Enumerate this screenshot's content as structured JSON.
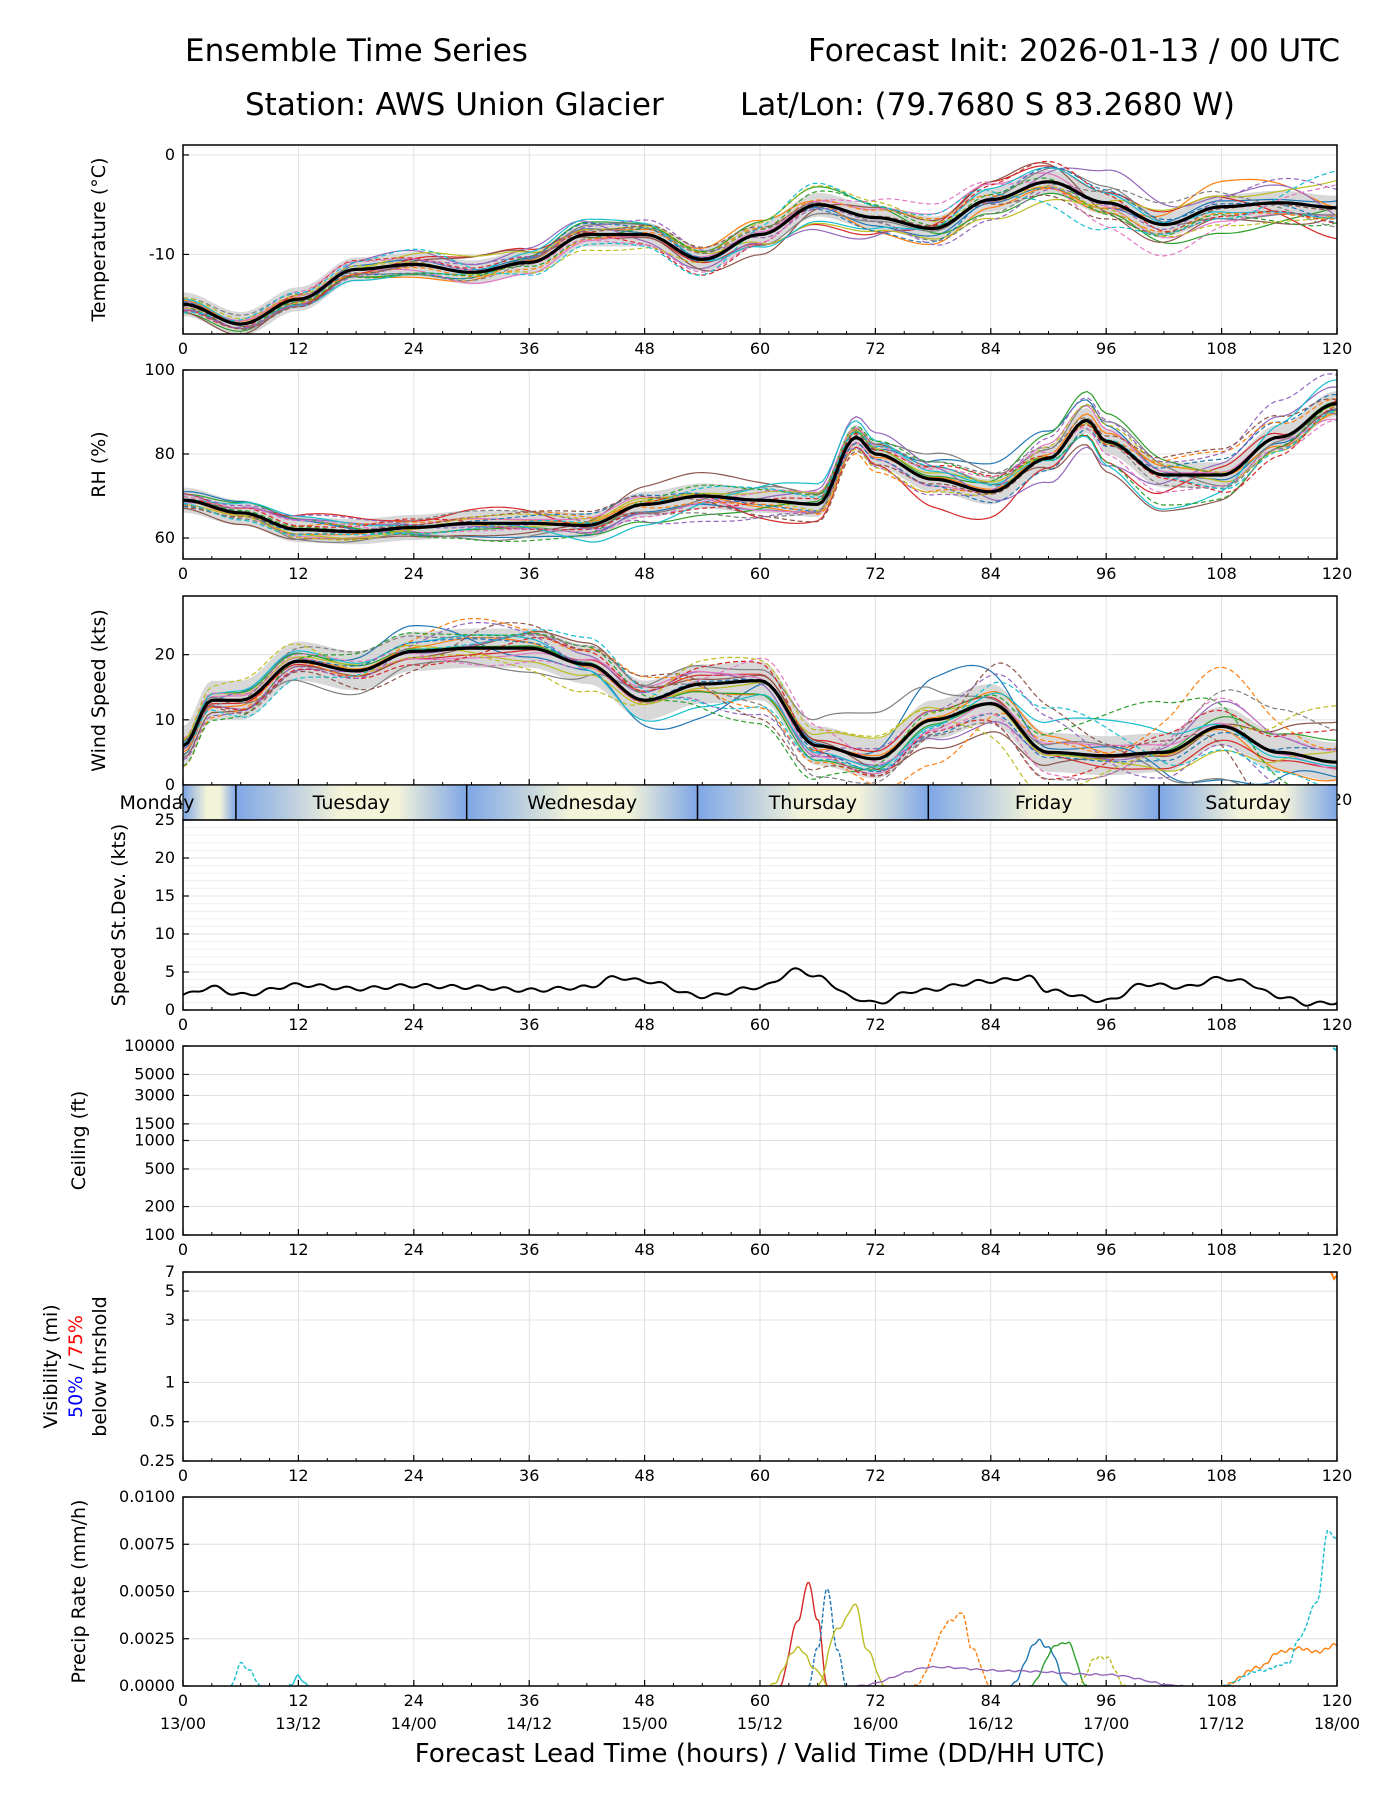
{
  "header": {
    "title_left": "Ensemble Time Series",
    "title_right": "Forecast Init: 2026-01-13 / 00 UTC",
    "station": "Station: AWS Union Glacier",
    "latlon": "Lat/Lon: (79.7680 S 83.2680 W)"
  },
  "colors": {
    "mean": "#000000",
    "spread": "#c8c8c8",
    "grid": "#e0e0e0",
    "members": [
      "#1f77b4",
      "#ff7f0e",
      "#2ca02c",
      "#d62728",
      "#9467bd",
      "#8c564b",
      "#e377c2",
      "#7f7f7f",
      "#bcbd22",
      "#17becf"
    ],
    "vis_50": "#0000ff",
    "vis_75": "#ff0000",
    "day_band_light": "#f3f3d9",
    "day_band_dark": "#7ea6e6"
  },
  "xaxis": {
    "lead_ticks": [
      0,
      12,
      24,
      36,
      48,
      60,
      72,
      84,
      96,
      108,
      120
    ],
    "valid_labels": [
      "13/00",
      "13/12",
      "14/00",
      "14/12",
      "15/00",
      "15/12",
      "16/00",
      "16/12",
      "17/00",
      "17/12",
      "18/00"
    ],
    "xlabel": "Forecast Lead Time (hours) / Valid Time (DD/HH UTC)"
  },
  "day_bands": [
    {
      "label": "Monday"
    },
    {
      "label": "Tuesday"
    },
    {
      "label": "Wednesday"
    },
    {
      "label": "Thursday"
    },
    {
      "label": "Friday"
    },
    {
      "label": "Saturday"
    }
  ],
  "chart_data": [
    {
      "id": "temperature",
      "type": "line",
      "ylabel": "Temperature (°C)",
      "ylim": [
        -18,
        1
      ],
      "yticks": [
        0,
        -10
      ],
      "x": [
        0,
        6,
        12,
        18,
        24,
        30,
        36,
        42,
        48,
        54,
        60,
        66,
        72,
        78,
        84,
        90,
        96,
        102,
        108,
        114,
        120
      ],
      "mean": [
        -15,
        -17,
        -14.5,
        -11.5,
        -11,
        -11.8,
        -10.8,
        -8,
        -8,
        -10.5,
        -8,
        -5,
        -6.3,
        -7.4,
        -4.5,
        -2.7,
        -4.8,
        -7,
        -5.2,
        -4.8,
        -5.3
      ],
      "spread": 1.2,
      "members": 20
    },
    {
      "id": "rh",
      "type": "line",
      "ylabel": "RH (%)",
      "ylim": [
        55,
        100
      ],
      "yticks": [
        60,
        80,
        100
      ],
      "x": [
        0,
        6,
        12,
        18,
        24,
        30,
        36,
        42,
        48,
        54,
        60,
        66,
        70,
        72,
        78,
        84,
        90,
        94,
        96,
        102,
        108,
        114,
        120
      ],
      "mean": [
        69,
        66,
        62,
        61.5,
        62.5,
        63.5,
        63.5,
        63,
        68,
        70,
        69,
        68,
        84,
        80,
        74,
        71,
        79,
        88,
        83,
        75,
        75,
        84,
        92
      ],
      "spread": 3,
      "members": 20
    },
    {
      "id": "wind",
      "type": "line",
      "ylabel": "Wind Speed (kts)",
      "ylim": [
        0,
        29
      ],
      "yticks": [
        0,
        10,
        20
      ],
      "x": [
        0,
        3,
        6,
        12,
        18,
        24,
        30,
        36,
        42,
        48,
        54,
        60,
        66,
        72,
        78,
        84,
        90,
        96,
        102,
        108,
        114,
        120
      ],
      "mean": [
        6,
        13,
        13,
        19,
        17.5,
        20.5,
        21,
        21,
        18.5,
        13,
        15.5,
        16,
        6,
        4,
        10,
        12.5,
        5,
        4.5,
        5,
        9,
        5,
        3.5
      ],
      "spread": 3,
      "members": 20
    },
    {
      "id": "stdev",
      "type": "line",
      "ylabel": "Speed St.Dev. (kts)",
      "ylim": [
        0,
        25
      ],
      "yticks": [
        0,
        5,
        10,
        15,
        20,
        25
      ],
      "x": [
        0,
        3,
        6,
        12,
        18,
        24,
        30,
        36,
        42,
        45,
        48,
        54,
        60,
        64,
        66,
        70,
        72,
        76,
        84,
        88,
        90,
        96,
        100,
        104,
        108,
        110,
        114,
        117,
        120
      ],
      "values": [
        2,
        3,
        2,
        3.3,
        2.8,
        3.2,
        3,
        2.6,
        3,
        4.3,
        3.8,
        1.8,
        3,
        5.3,
        4.3,
        1.5,
        0.9,
        2.5,
        3.8,
        4.3,
        2.5,
        1.2,
        3.4,
        3,
        4.2,
        3.8,
        1.8,
        0.8,
        1
      ]
    },
    {
      "id": "ceiling",
      "type": "line",
      "ylabel": "Ceiling (ft)",
      "yscale": "log",
      "ylim": [
        100,
        10000
      ],
      "yticks": [
        100,
        200,
        500,
        1000,
        1500,
        3000,
        5000,
        10000
      ],
      "series": []
    },
    {
      "id": "visibility",
      "type": "line",
      "ylabel_lines": [
        "Visibility (mi)",
        "below thrshold"
      ],
      "ylabel_50": "50%",
      "ylabel_sep": " / ",
      "ylabel_75": "75%",
      "yscale": "log",
      "ylim": [
        0.25,
        7
      ],
      "yticks": [
        0.25,
        0.5,
        1,
        3,
        5,
        7
      ],
      "series": []
    },
    {
      "id": "precip",
      "type": "line",
      "ylabel": "Precip Rate (mm/h)",
      "ylim": [
        0,
        0.01
      ],
      "yticks": [
        0.0,
        0.0025,
        0.005,
        0.0075,
        0.01
      ],
      "ytick_labels": [
        "0.0000",
        "0.0025",
        "0.0050",
        "0.0075",
        "0.0100"
      ],
      "series": [
        {
          "color_index": 9,
          "x": [
            5,
            6,
            7,
            8
          ],
          "y": [
            0,
            0.0012,
            0.0008,
            0
          ]
        },
        {
          "color_index": 9,
          "x": [
            11,
            12,
            13
          ],
          "y": [
            0,
            0.0005,
            0
          ]
        },
        {
          "color_index": 3,
          "x": [
            62,
            64,
            65,
            66,
            67
          ],
          "y": [
            0,
            0.0035,
            0.0055,
            0.0035,
            0
          ]
        },
        {
          "color_index": 0,
          "x": [
            65,
            66,
            67,
            68,
            69
          ],
          "y": [
            0,
            0.002,
            0.0052,
            0.002,
            0
          ]
        },
        {
          "color_index": 8,
          "x": [
            66,
            68,
            70,
            71,
            73
          ],
          "y": [
            0,
            0.003,
            0.0043,
            0.002,
            0
          ]
        },
        {
          "color_index": 8,
          "x": [
            61,
            64,
            66,
            67
          ],
          "y": [
            0,
            0.002,
            0.0008,
            0
          ]
        },
        {
          "color_index": 1,
          "x": [
            76,
            80,
            81,
            82,
            84
          ],
          "y": [
            0,
            0.0035,
            0.0039,
            0.002,
            0
          ]
        },
        {
          "color_index": 0,
          "x": [
            86,
            89,
            90,
            92
          ],
          "y": [
            0,
            0.0024,
            0.002,
            0
          ]
        },
        {
          "color_index": 2,
          "x": [
            88,
            91,
            92,
            94
          ],
          "y": [
            0,
            0.0022,
            0.0023,
            0
          ]
        },
        {
          "color_index": 8,
          "x": [
            93,
            95,
            96,
            98
          ],
          "y": [
            0,
            0.0015,
            0.0015,
            0
          ]
        },
        {
          "color_index": 4,
          "x": [
            70,
            78,
            86,
            96,
            104
          ],
          "y": [
            0,
            0.001,
            0.0008,
            0.0006,
            0
          ]
        },
        {
          "color_index": 1,
          "x": [
            108,
            112,
            114,
            116,
            118,
            120
          ],
          "y": [
            0,
            0.001,
            0.0018,
            0.002,
            0.0018,
            0.0022
          ]
        },
        {
          "color_index": 9,
          "x": [
            108,
            112,
            115,
            116,
            118,
            119,
            120
          ],
          "y": [
            0,
            0.0008,
            0.0012,
            0.0025,
            0.0045,
            0.0082,
            0.0078
          ]
        }
      ]
    }
  ]
}
